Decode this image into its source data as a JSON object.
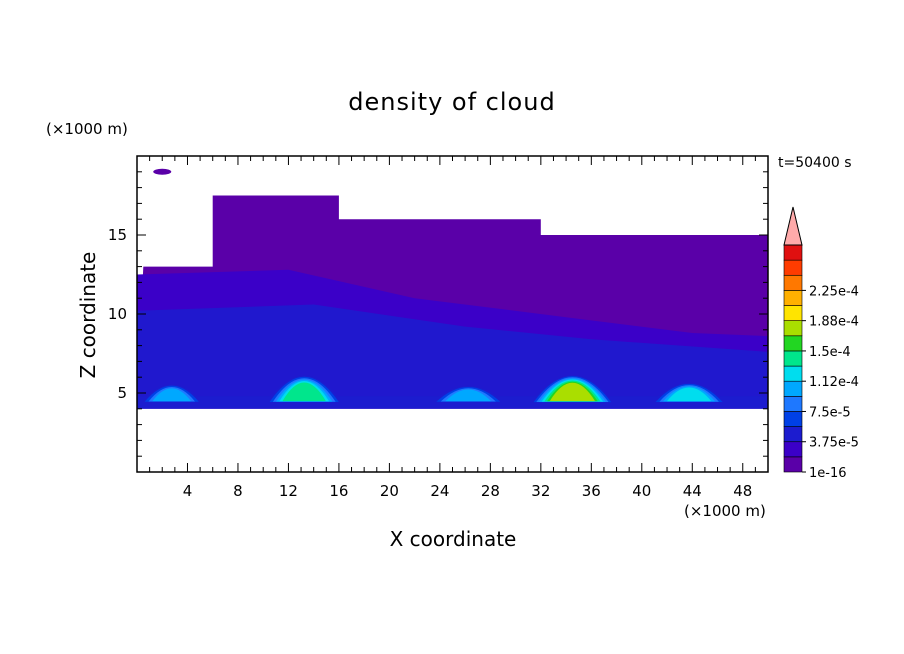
{
  "chart_data": {
    "type": "heatmap",
    "title": "density of cloud",
    "xlabel": "X coordinate",
    "ylabel": "Z coordinate",
    "x_unit": "(×1000 m)",
    "y_unit": "(×1000 m)",
    "time_label": "t=50400 s",
    "xlim": [
      0,
      50
    ],
    "ylim": [
      0,
      20
    ],
    "x_ticks": [
      4,
      8,
      12,
      16,
      20,
      24,
      28,
      32,
      36,
      40,
      44,
      48
    ],
    "y_ticks": [
      5,
      10,
      15
    ],
    "grid": false,
    "colorbar": {
      "labels": [
        "1e-16",
        "3.75e-5",
        "7.5e-5",
        "1.12e-4",
        "1.5e-4",
        "1.88e-4",
        "2.25e-4"
      ],
      "levels": [
        1e-16,
        1.875e-05,
        3.75e-05,
        5.625e-05,
        7.5e-05,
        9.375e-05,
        0.0001125,
        0.00013125,
        0.00015,
        0.00016875,
        0.0001875,
        0.00020625,
        0.000225,
        0.00024375
      ],
      "colors": [
        "#5a00a8",
        "#3b00c8",
        "#1c1ccf",
        "#0040e6",
        "#1e78ff",
        "#00a8ff",
        "#00ddee",
        "#00e68c",
        "#22d622",
        "#aade00",
        "#ffe400",
        "#ffb000",
        "#ff7800",
        "#ff3c00",
        "#e01010"
      ],
      "extend_color": "#ffaaaa"
    },
    "base_layer_z": [
      4,
      4.8
    ],
    "cloud_tops": [
      {
        "x": [
          0.5,
          6
        ],
        "z": 13
      },
      {
        "x": [
          6,
          16
        ],
        "z": 17.5
      },
      {
        "x": [
          16,
          32
        ],
        "z": 16
      },
      {
        "x": [
          32,
          50
        ],
        "z": 15
      }
    ],
    "cores": [
      {
        "x": [
          0,
          5.5
        ],
        "z_top": 5.7,
        "peak": 7.5e-05
      },
      {
        "x": [
          10,
          16.5
        ],
        "z_top": 6.3,
        "peak": 0.00013
      },
      {
        "x": [
          23,
          29.5
        ],
        "z_top": 5.6,
        "peak": 9e-05
      },
      {
        "x": [
          31,
          38
        ],
        "z_top": 6.3,
        "peak": 0.00015
      },
      {
        "x": [
          40.5,
          47
        ],
        "z_top": 5.8,
        "peak": 0.00011
      }
    ]
  }
}
